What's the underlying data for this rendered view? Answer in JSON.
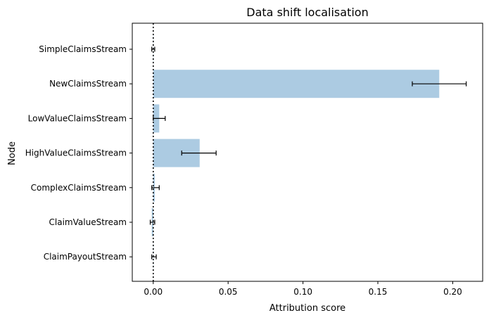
{
  "chart_data": {
    "type": "bar",
    "orientation": "horizontal",
    "title": "Data shift localisation",
    "xlabel": "Attribution score",
    "ylabel": "Node",
    "xlim": [
      -0.014,
      0.22
    ],
    "xticks": [
      0.0,
      0.05,
      0.1,
      0.15,
      0.2
    ],
    "xtick_labels": [
      "0.00",
      "0.05",
      "0.10",
      "0.15",
      "0.20"
    ],
    "categories": [
      "SimpleClaimsStream",
      "NewClaimsStream",
      "LowValueClaimsStream",
      "HighValueClaimsStream",
      "ComplexClaimsStream",
      "ClaimValueStream",
      "ClaimPayoutStream"
    ],
    "values": [
      0.0,
      0.191,
      0.004,
      0.031,
      0.001,
      -0.001,
      0.0
    ],
    "error_low": [
      -0.001,
      0.173,
      0.0,
      0.019,
      -0.001,
      -0.002,
      -0.001
    ],
    "error_high": [
      0.001,
      0.209,
      0.008,
      0.042,
      0.004,
      0.001,
      0.002
    ],
    "reference_line": {
      "x": 0.0,
      "style": "dotted"
    },
    "bar_color": "#a8c8e0",
    "grid": false,
    "legend": "none"
  }
}
